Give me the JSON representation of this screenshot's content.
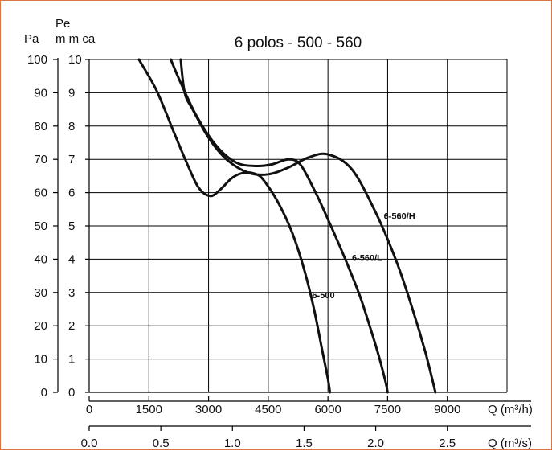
{
  "chart_data": {
    "type": "line",
    "title": "6 polos - 500 - 560",
    "ylabel_pa": "Pa",
    "ylabel_pe": "Pe",
    "ylabel_mmca": "m m ca",
    "xlabel_m3h": "Q (m³/h)",
    "xlabel_m3s": "Q (m³/s)",
    "xlim": [
      0,
      10500
    ],
    "ylim": [
      0,
      10
    ],
    "x_ticks_m3h": [
      0,
      1500,
      3000,
      4500,
      6000,
      7500,
      9000
    ],
    "x_tick_labels_m3h": [
      "0",
      "1500",
      "3000",
      "4500",
      "6000",
      "7500",
      "9000"
    ],
    "x_ticks_m3s": [
      0.0,
      0.5,
      1.0,
      1.5,
      2.0,
      2.5
    ],
    "x_tick_labels_m3s": [
      "0.0",
      "0.5",
      "1.0",
      "1.5",
      "2.0",
      "2.5"
    ],
    "y_ticks_mmca": [
      0,
      1,
      2,
      3,
      4,
      5,
      6,
      7,
      8,
      9,
      10
    ],
    "y_tick_labels_mmca": [
      "0",
      "1",
      "2",
      "3",
      "4",
      "5",
      "6",
      "7",
      "8",
      "9",
      "10"
    ],
    "y_ticks_pa": [
      0,
      10,
      20,
      30,
      40,
      50,
      60,
      70,
      80,
      90,
      100
    ],
    "y_tick_labels_pa": [
      "0",
      "10",
      "20",
      "30",
      "40",
      "50",
      "60",
      "70",
      "80",
      "90",
      "100"
    ],
    "grid": true,
    "series": [
      {
        "name": "6-500",
        "x": [
          1250,
          1700,
          2150,
          2450,
          2750,
          3050,
          3300,
          3600,
          3900,
          4200,
          4400,
          4750,
          5100,
          5400,
          5650,
          5850,
          6000,
          6050
        ],
        "y": [
          10,
          9.05,
          7.75,
          6.9,
          6.15,
          5.9,
          6.1,
          6.45,
          6.6,
          6.55,
          6.35,
          5.7,
          4.8,
          3.7,
          2.5,
          1.3,
          0.4,
          0
        ]
      },
      {
        "name": "6-560/L",
        "x": [
          2050,
          2300,
          2700,
          3200,
          3700,
          4200,
          4600,
          5000,
          5300,
          5650,
          6000,
          6400,
          6800,
          7100,
          7300,
          7450,
          7500
        ],
        "y": [
          10,
          9.3,
          8.3,
          7.4,
          6.9,
          6.8,
          6.85,
          7.0,
          6.85,
          6.1,
          5.2,
          4.1,
          2.9,
          1.8,
          1.0,
          0.3,
          0
        ]
      },
      {
        "name": "6-560/H",
        "x": [
          2300,
          2400,
          2600,
          3000,
          3450,
          4000,
          4500,
          5000,
          5500,
          6000,
          6600,
          7200,
          7700,
          8100,
          8450,
          8700
        ],
        "y": [
          10,
          9.0,
          8.5,
          7.65,
          7.0,
          6.6,
          6.55,
          6.75,
          7.05,
          7.15,
          6.7,
          5.4,
          4.0,
          2.6,
          1.2,
          0
        ]
      }
    ]
  }
}
